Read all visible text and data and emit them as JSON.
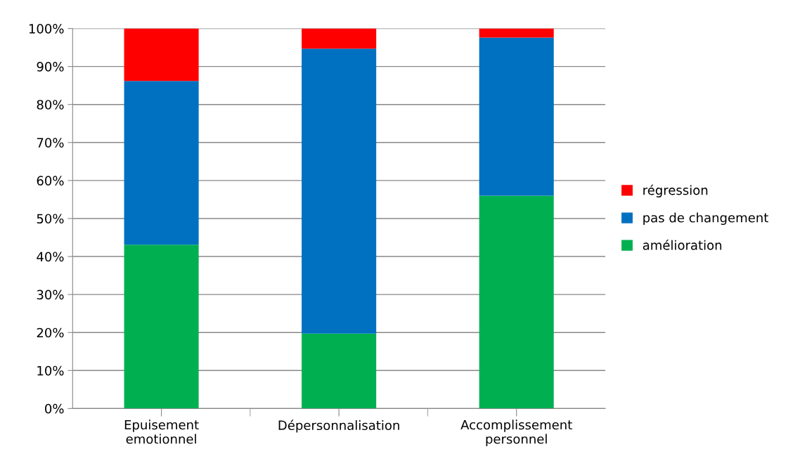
{
  "chart_data": {
    "type": "bar",
    "stacked": true,
    "categories": [
      "Epuisement\nemotionnel",
      "Dépersonnalisation",
      "Accomplissement\npersonnel"
    ],
    "series": [
      {
        "name": "amélioration",
        "color": "#00b050",
        "values": [
          43.1,
          19.7,
          56.0
        ]
      },
      {
        "name": "pas de changement",
        "color": "#0070c0",
        "values": [
          43.1,
          75.0,
          41.6
        ]
      },
      {
        "name": "régression",
        "color": "#ff0000",
        "values": [
          13.8,
          5.3,
          2.4
        ]
      }
    ],
    "ylim": [
      0,
      100
    ],
    "yticks": [
      {
        "value": 0,
        "label": "0%"
      },
      {
        "value": 10,
        "label": "10%"
      },
      {
        "value": 20,
        "label": "20%"
      },
      {
        "value": 30,
        "label": "30%"
      },
      {
        "value": 40,
        "label": "40%"
      },
      {
        "value": 50,
        "label": "50%"
      },
      {
        "value": 60,
        "label": "60%"
      },
      {
        "value": 70,
        "label": "70%"
      },
      {
        "value": 80,
        "label": "80%"
      },
      {
        "value": 90,
        "label": "90%"
      },
      {
        "value": 100,
        "label": "100%"
      }
    ],
    "grid": "y",
    "legend": "right"
  }
}
